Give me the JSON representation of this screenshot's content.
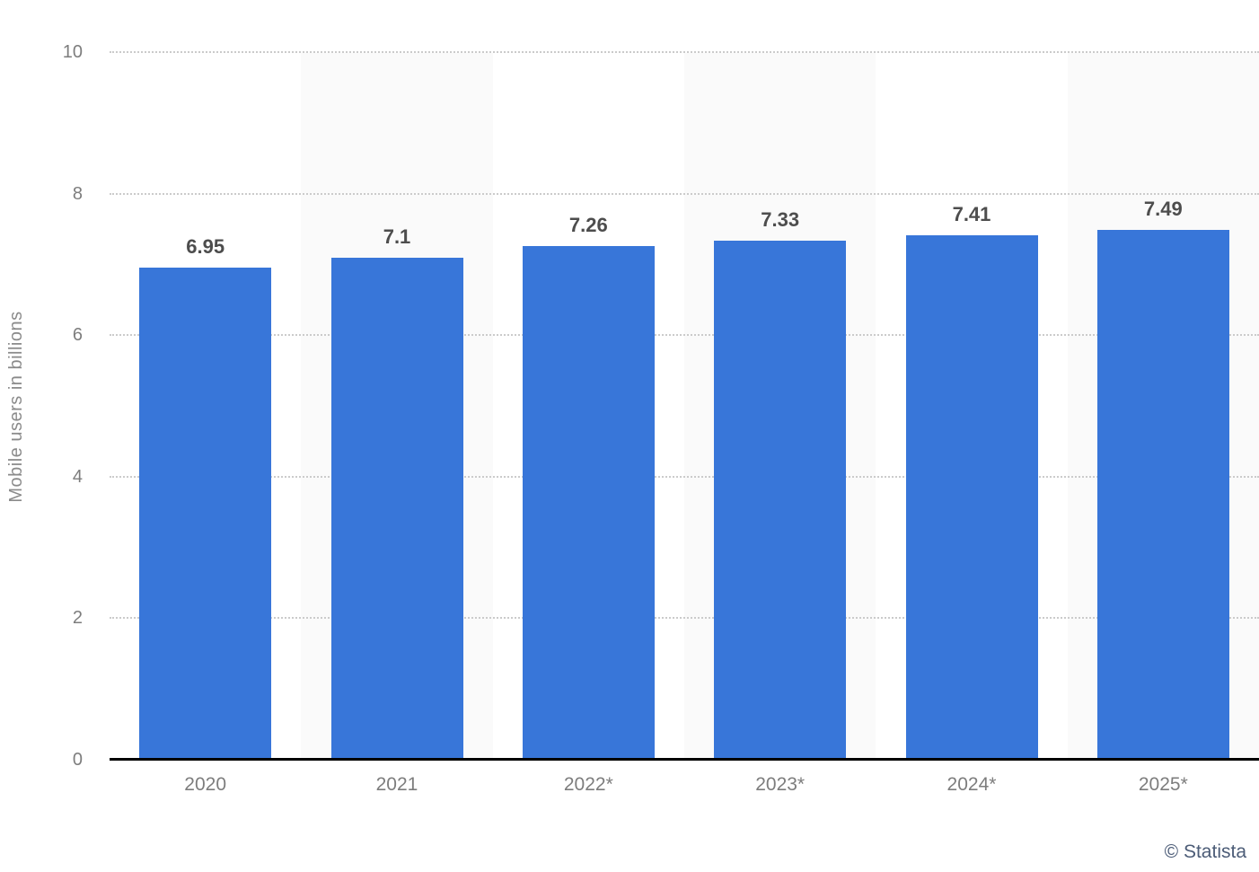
{
  "attribution": "© Statista",
  "colors": {
    "bar": "#3876d9",
    "column_stripe": "#fafafa",
    "gridline": "#cbcbcb",
    "axis_line": "#000000",
    "tick_label": "#7d7d7d",
    "value_label": "#4d4d4d",
    "attribution_text": "#4c5c77",
    "background": "#ffffff"
  },
  "chart_data": {
    "type": "bar",
    "title": "",
    "xlabel": "",
    "ylabel": "Mobile users in billions",
    "categories": [
      "2020",
      "2021",
      "2022*",
      "2023*",
      "2024*",
      "2025*"
    ],
    "values": [
      6.95,
      7.1,
      7.26,
      7.33,
      7.41,
      7.49
    ],
    "value_labels": [
      "6.95",
      "7.1",
      "7.26",
      "7.33",
      "7.41",
      "7.49"
    ],
    "ylim": [
      0,
      10
    ],
    "yticks": [
      0,
      2,
      4,
      6,
      8,
      10
    ],
    "grid": "horizontal dotted gridlines at each y tick, solid black baseline at 0",
    "legend": "none",
    "striped_column_indexes": [
      1,
      3,
      5
    ],
    "bar_color": "#3876d9"
  }
}
